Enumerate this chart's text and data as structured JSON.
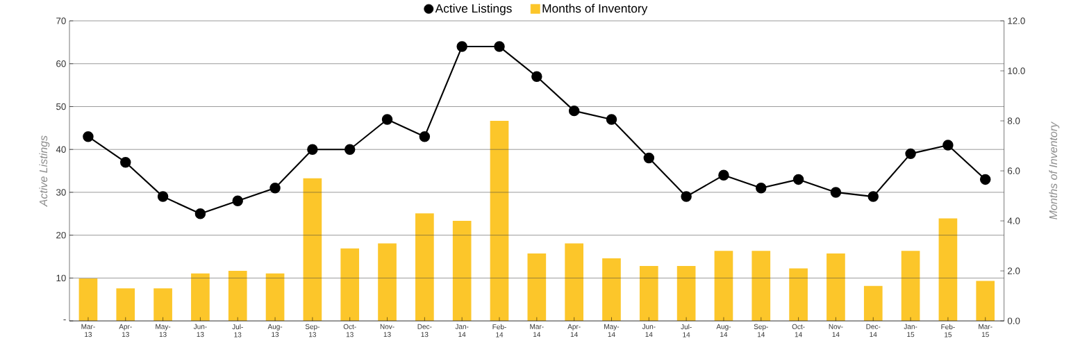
{
  "chart_data": {
    "type": "bar",
    "categories": [
      "Mar-13",
      "Apr-13",
      "May-13",
      "Jun-13",
      "Jul-13",
      "Aug-13",
      "Sep-13",
      "Oct-13",
      "Nov-13",
      "Dec-13",
      "Jan-14",
      "Feb-14",
      "Mar-14",
      "Apr-14",
      "May-14",
      "Jun-14",
      "Jul-14",
      "Aug-14",
      "Sep-14",
      "Oct-14",
      "Nov-14",
      "Dec-14",
      "Jan-15",
      "Feb-15",
      "Mar-15"
    ],
    "series": [
      {
        "name": "Active Listings",
        "type": "line",
        "color": "#000000",
        "marker": "circle",
        "values": [
          43,
          37,
          29,
          25,
          28,
          31,
          40,
          40,
          47,
          43,
          64,
          64,
          57,
          49,
          47,
          38,
          29,
          34,
          31,
          33,
          30,
          29,
          39,
          41,
          33
        ]
      },
      {
        "name": "Months of Inventory",
        "axis": "y2",
        "color": "#fcc62a",
        "values": [
          1.7,
          1.3,
          1.3,
          1.9,
          2.0,
          1.9,
          5.7,
          2.9,
          3.1,
          4.3,
          4.0,
          8.0,
          2.7,
          3.1,
          2.5,
          2.2,
          2.2,
          2.8,
          2.8,
          2.1,
          2.7,
          1.4,
          2.8,
          4.1,
          1.6
        ]
      }
    ],
    "ylabel": "Active Listings",
    "y2label": "Months of Inventory",
    "ylim": [
      0,
      70
    ],
    "yticks": [
      {
        "value": 0,
        "label": "-"
      },
      10,
      20,
      30,
      40,
      50,
      60,
      70
    ],
    "y2lim": [
      0,
      12
    ],
    "y2ticks": [
      {
        "value": 0,
        "label": "0.0"
      },
      {
        "value": 2,
        "label": "2.0"
      },
      {
        "value": 4,
        "label": "4.0"
      },
      {
        "value": 6,
        "label": "6.0"
      },
      {
        "value": 8,
        "label": "8.0"
      },
      {
        "value": 10,
        "label": "10.0"
      },
      {
        "value": 12,
        "label": "12.0"
      }
    ],
    "grid": "y",
    "legend": "top"
  }
}
